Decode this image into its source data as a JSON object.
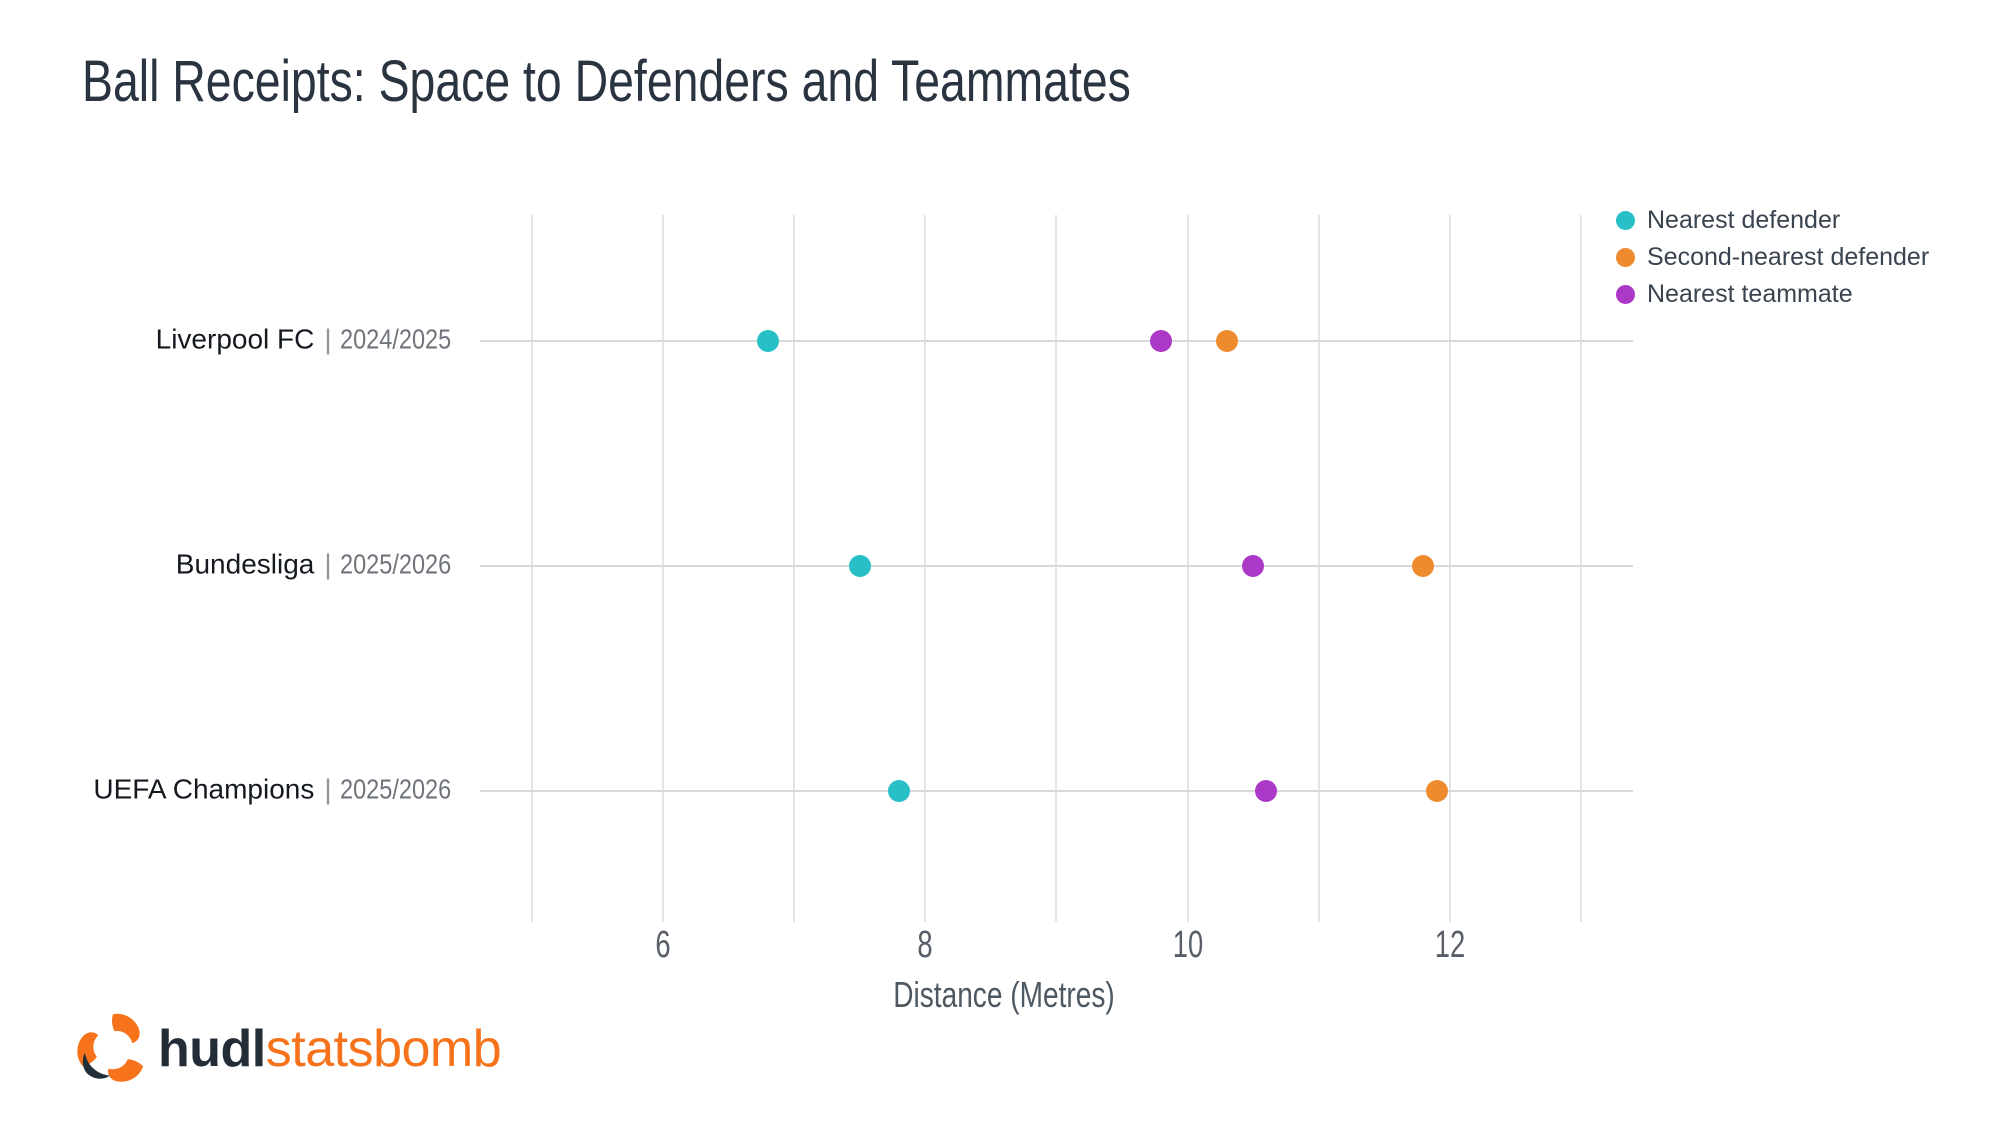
{
  "title": "Ball Receipts: Space to Defenders and Teammates",
  "separator": "|",
  "chart_data": {
    "type": "scatter",
    "subtype": "horizontal-dot-plot",
    "title": "Ball Receipts: Space to Defenders and Teammates",
    "xlabel": "Distance (Metres)",
    "ylabel": "",
    "xrange": [
      5,
      13
    ],
    "xticks": [
      6,
      8,
      10,
      12
    ],
    "grid": true,
    "legend_position": "top-right",
    "rows": [
      {
        "team": "Liverpool FC",
        "season": "2024/2025"
      },
      {
        "team": "Bundesliga",
        "season": "2025/2026"
      },
      {
        "team": "UEFA Champions",
        "season": "2025/2026"
      }
    ],
    "series": [
      {
        "name": "Nearest defender",
        "color": "#29BFC7",
        "values": [
          6.8,
          7.5,
          7.8
        ]
      },
      {
        "name": "Second-nearest defender",
        "color": "#EE8B2F",
        "values": [
          10.3,
          11.8,
          11.9
        ]
      },
      {
        "name": "Nearest teammate",
        "color": "#AC38C8",
        "values": [
          9.8,
          10.5,
          10.6
        ]
      }
    ]
  },
  "legend": {
    "items": [
      {
        "label": "Nearest defender",
        "color": "#29BFC7"
      },
      {
        "label": "Second-nearest defender",
        "color": "#EE8B2F"
      },
      {
        "label": "Nearest teammate",
        "color": "#AC38C8"
      }
    ]
  },
  "footer": {
    "logo_bold": "hudl",
    "logo_light": "statsbomb",
    "logo_icon": "hudl-statsbomb-mark",
    "brand_orange": "#F6731B",
    "brand_navy": "#232D38"
  },
  "colors": {
    "title_text": "#2A3440",
    "gridline": "#E4E4E6",
    "row_line": "#D9D9DB",
    "tick_text": "#575E67",
    "row_label_text": "#14191F",
    "season_text": "#70757C"
  }
}
